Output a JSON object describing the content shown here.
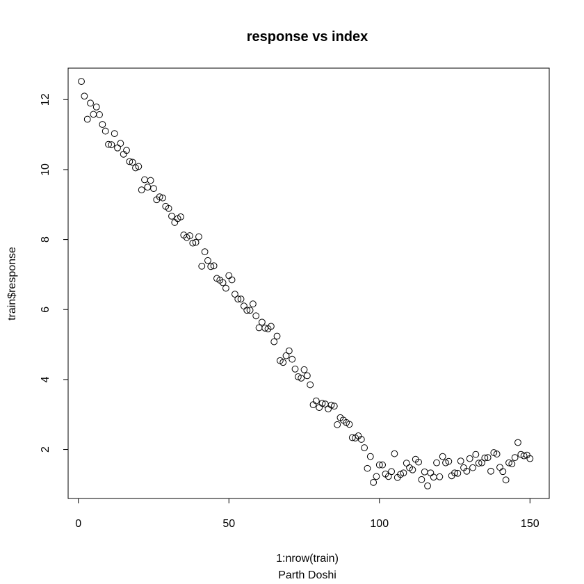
{
  "chart_data": {
    "type": "scatter",
    "title": "response vs index",
    "xlabel": "1:nrow(train)",
    "sublabel": "Parth Doshi",
    "ylabel": "train$response",
    "xlim": [
      -3.4,
      156.4
    ],
    "ylim": [
      0.6,
      12.9
    ],
    "x_ticks": [
      0,
      50,
      100,
      150
    ],
    "y_ticks": [
      2,
      4,
      6,
      8,
      10,
      12
    ],
    "marker": "open-circle",
    "grid": false,
    "legend": "none",
    "x": [
      1,
      2,
      3,
      4,
      5,
      6,
      7,
      8,
      9,
      10,
      11,
      12,
      13,
      14,
      15,
      16,
      17,
      18,
      19,
      20,
      21,
      22,
      23,
      24,
      25,
      26,
      27,
      28,
      29,
      30,
      31,
      32,
      33,
      34,
      35,
      36,
      37,
      38,
      39,
      40,
      41,
      42,
      43,
      44,
      45,
      46,
      47,
      48,
      49,
      50,
      51,
      52,
      53,
      54,
      55,
      56,
      57,
      58,
      59,
      60,
      61,
      62,
      63,
      64,
      65,
      66,
      67,
      68,
      69,
      70,
      71,
      72,
      73,
      74,
      75,
      76,
      77,
      78,
      79,
      80,
      81,
      82,
      83,
      84,
      85,
      86,
      87,
      88,
      89,
      90,
      91,
      92,
      93,
      94,
      95,
      96,
      97,
      98,
      99,
      100,
      101,
      102,
      103,
      104,
      105,
      106,
      107,
      108,
      109,
      110,
      111,
      112,
      113,
      114,
      115,
      116,
      117,
      118,
      119,
      120,
      121,
      122,
      123,
      124,
      125,
      126,
      127,
      128,
      129,
      130,
      131,
      132,
      133,
      134,
      135,
      136,
      137,
      138,
      139,
      140,
      141,
      142,
      143,
      144,
      145,
      146,
      147,
      148,
      149,
      150
    ],
    "y": [
      12.52,
      12.1,
      11.44,
      11.9,
      11.58,
      11.79,
      11.57,
      11.29,
      11.1,
      10.72,
      10.71,
      11.03,
      10.62,
      10.75,
      10.44,
      10.55,
      10.23,
      10.21,
      10.05,
      10.09,
      9.42,
      9.71,
      9.5,
      9.69,
      9.46,
      9.14,
      9.22,
      9.19,
      8.95,
      8.89,
      8.67,
      8.49,
      8.6,
      8.65,
      8.13,
      8.06,
      8.11,
      7.9,
      7.92,
      8.08,
      7.24,
      7.65,
      7.4,
      7.23,
      7.25,
      6.89,
      6.84,
      6.77,
      6.61,
      6.97,
      6.85,
      6.44,
      6.3,
      6.3,
      6.1,
      5.98,
      5.98,
      6.16,
      5.82,
      5.48,
      5.64,
      5.47,
      5.45,
      5.52,
      5.08,
      5.24,
      4.54,
      4.49,
      4.68,
      4.82,
      4.58,
      4.3,
      4.08,
      4.04,
      4.28,
      4.11,
      3.85,
      3.28,
      3.39,
      3.2,
      3.32,
      3.3,
      3.16,
      3.27,
      3.24,
      2.71,
      2.91,
      2.84,
      2.77,
      2.72,
      2.34,
      2.33,
      2.39,
      2.29,
      2.05,
      1.46,
      1.8,
      1.06,
      1.23,
      1.56,
      1.56,
      1.3,
      1.23,
      1.37,
      1.88,
      1.2,
      1.29,
      1.33,
      1.61,
      1.48,
      1.42,
      1.72,
      1.64,
      1.14,
      1.36,
      0.96,
      1.33,
      1.21,
      1.62,
      1.22,
      1.8,
      1.62,
      1.66,
      1.25,
      1.33,
      1.32,
      1.67,
      1.48,
      1.38,
      1.74,
      1.48,
      1.86,
      1.61,
      1.62,
      1.76,
      1.77,
      1.38,
      1.91,
      1.87,
      1.49,
      1.37,
      1.13,
      1.62,
      1.59,
      1.77,
      2.2,
      1.86,
      1.82,
      1.84,
      1.74
    ]
  }
}
